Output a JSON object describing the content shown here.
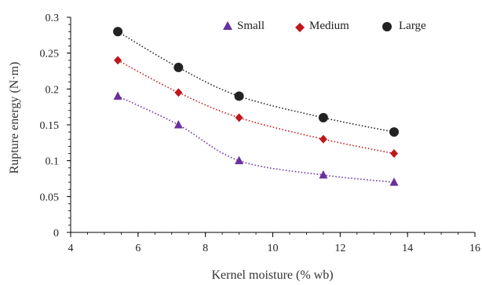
{
  "chart_data": {
    "type": "scatter",
    "xlabel": "Kernel moisture (% wb)",
    "ylabel": "Rupture energy (N·m)",
    "xlim": [
      4,
      16
    ],
    "ylim": [
      0,
      0.3
    ],
    "xticks": [
      "4",
      "6",
      "8",
      "10",
      "12",
      "14",
      "16"
    ],
    "yticks": [
      "0",
      "0.05",
      "0.1",
      "0.15",
      "0.2",
      "0.25",
      "0.3"
    ],
    "grid": false,
    "legend_position": "top",
    "series": [
      {
        "name": "Small",
        "marker": "triangle",
        "color": "#6a2f9e",
        "x": [
          5.4,
          7.2,
          9.0,
          11.5,
          13.6
        ],
        "y": [
          0.19,
          0.15,
          0.1,
          0.08,
          0.07
        ]
      },
      {
        "name": "Medium",
        "marker": "diamond",
        "color": "#c0161c",
        "x": [
          5.4,
          7.2,
          9.0,
          11.5,
          13.6
        ],
        "y": [
          0.24,
          0.195,
          0.16,
          0.13,
          0.11
        ]
      },
      {
        "name": "Large",
        "marker": "circle",
        "color": "#222222",
        "x": [
          5.4,
          7.2,
          9.0,
          11.5,
          13.6
        ],
        "y": [
          0.28,
          0.23,
          0.19,
          0.16,
          0.14
        ]
      }
    ]
  }
}
